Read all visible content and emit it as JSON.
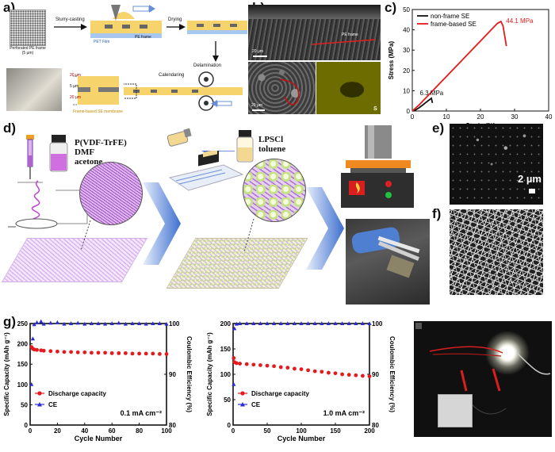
{
  "panel_labels": {
    "a": "a)",
    "b": "b)",
    "c": "c)",
    "d": "d)",
    "e": "e)",
    "f": "f)",
    "g": "g)"
  },
  "panel_a": {
    "frame_caption": "Perforated PE frame",
    "frame_size": "(5 µm)",
    "slurry": "Slurry-casting",
    "pe_frame": "PE frame",
    "pet_film": "PET Film",
    "drying": "Drying",
    "delamination": "Delamination",
    "calendaring": "Calendaring",
    "dim_top": "20 µm",
    "dim_mid": "5 µm",
    "dim_bot": "20 µm",
    "membrane_caption": "Frame-based SE membrane"
  },
  "panel_b": {
    "pe_frame_label": "PE frame",
    "scale_top": "20 µm",
    "scale_bottom": "20 µm",
    "eds_element": "S"
  },
  "panel_d": {
    "polymer_line1": "P(VDF-TrFE)",
    "polymer_line2": "DMF",
    "polymer_line3": "acetone",
    "salt_line1": "LPSCl",
    "salt_line2": "toluene"
  },
  "panel_e": {
    "scale": "2 µm"
  },
  "colors": {
    "red": "#e41a1c",
    "blue": "#2b2bd6",
    "black": "#111111",
    "frame_yellow": "#f6d36b",
    "arrow_blue": "#6a8fd8",
    "eds_yellow": "#d8d800"
  },
  "chart_data": [
    {
      "type": "line",
      "panel": "c",
      "xlabel": "Strain (%)",
      "ylabel": "Stress (MPa)",
      "xlim": [
        0,
        40
      ],
      "ylim": [
        0,
        50
      ],
      "xticks": [
        0,
        10,
        20,
        30,
        40
      ],
      "yticks": [
        0,
        10,
        20,
        30,
        40,
        50
      ],
      "legend_position": "top-left",
      "series": [
        {
          "name": "non-frame SE",
          "color": "#111111",
          "x": [
            0,
            1,
            2,
            3,
            4,
            5,
            5.6,
            5.9
          ],
          "y": [
            0,
            0.6,
            1.6,
            2.9,
            4.2,
            5.5,
            6.3,
            4.0
          ]
        },
        {
          "name": "frame-based SE",
          "color": "#e41a1c",
          "x": [
            0,
            2,
            4,
            6,
            8,
            10,
            12,
            14,
            16,
            18,
            20,
            22,
            24,
            25,
            26,
            26.6,
            27.2,
            27.6
          ],
          "y": [
            0,
            3.0,
            6.5,
            10.0,
            13.5,
            17.0,
            20.5,
            24.0,
            27.5,
            31.0,
            34.5,
            38.0,
            41.5,
            43.2,
            44.1,
            42.0,
            36.0,
            32.0
          ]
        }
      ],
      "annotations": [
        {
          "text": "44.1 MPa",
          "color": "#e41a1c"
        },
        {
          "text": "6.3 MPa",
          "color": "#111111"
        }
      ]
    },
    {
      "type": "scatter",
      "panel": "g-left",
      "xlabel": "Cycle Number",
      "ylabel": "Specific Capacity (mAh g⁻¹)",
      "y2label": "Coulombic Efficiency (%)",
      "xlim": [
        0,
        100
      ],
      "ylim": [
        0,
        250
      ],
      "y2lim": [
        80,
        100
      ],
      "xticks": [
        0,
        20,
        40,
        60,
        80,
        100
      ],
      "yticks": [
        0,
        50,
        100,
        150,
        200,
        250
      ],
      "y2ticks": [
        80,
        90,
        100
      ],
      "annotation": "0.1 mA cm⁻²",
      "series": [
        {
          "name": "Discharge capacity",
          "axis": "left",
          "color": "#e41a1c",
          "marker": "circle",
          "x": [
            1,
            2,
            3,
            5,
            8,
            10,
            15,
            20,
            25,
            30,
            35,
            40,
            45,
            50,
            55,
            60,
            65,
            70,
            75,
            80,
            85,
            90,
            95,
            100
          ],
          "y": [
            192,
            188,
            186,
            185,
            184,
            183,
            182,
            181,
            180,
            180,
            179,
            179,
            178,
            178,
            178,
            177,
            177,
            177,
            176,
            176,
            176,
            176,
            175,
            175
          ]
        },
        {
          "name": "CE",
          "axis": "right",
          "color": "#2b2bd6",
          "marker": "triangle",
          "x": [
            1,
            2,
            3,
            5,
            8,
            10,
            15,
            20,
            25,
            30,
            35,
            40,
            45,
            50,
            55,
            60,
            65,
            70,
            75,
            80,
            85,
            90,
            95,
            100
          ],
          "y": [
            88,
            97,
            99.8,
            100.2,
            100.4,
            99.9,
            100.1,
            100.2,
            99.9,
            100,
            100.1,
            99.9,
            100,
            100,
            99.9,
            100,
            100.1,
            99.9,
            100,
            100,
            99.9,
            100,
            100,
            99.9
          ]
        }
      ]
    },
    {
      "type": "scatter",
      "panel": "g-middle",
      "xlabel": "Cycle Number",
      "ylabel": "Specific Capacity (mAh g⁻¹)",
      "y2label": "Coulombic Efficiency (%)",
      "xlim": [
        0,
        200
      ],
      "ylim": [
        0,
        200
      ],
      "y2lim": [
        80,
        100
      ],
      "xticks": [
        0,
        50,
        100,
        150,
        200
      ],
      "yticks": [
        0,
        50,
        100,
        150,
        200
      ],
      "y2ticks": [
        80,
        90,
        100
      ],
      "annotation": "1.0 mA cm⁻²",
      "series": [
        {
          "name": "Discharge capacity",
          "axis": "left",
          "color": "#e41a1c",
          "marker": "circle",
          "x": [
            1,
            2,
            5,
            10,
            20,
            30,
            40,
            50,
            60,
            70,
            80,
            90,
            100,
            110,
            120,
            130,
            140,
            150,
            160,
            170,
            180,
            190,
            200
          ],
          "y": [
            132,
            124,
            122,
            121,
            120,
            119,
            118,
            117,
            116,
            114,
            113,
            111,
            110,
            108,
            106,
            105,
            103,
            102,
            100,
            99,
            98,
            97,
            96
          ]
        },
        {
          "name": "CE",
          "axis": "right",
          "color": "#2b2bd6",
          "marker": "triangle",
          "x": [
            1,
            2,
            5,
            10,
            20,
            30,
            40,
            50,
            60,
            70,
            80,
            90,
            100,
            110,
            120,
            130,
            140,
            150,
            160,
            170,
            180,
            190,
            200
          ],
          "y": [
            88,
            99,
            99.9,
            100,
            100,
            100,
            100,
            100,
            100,
            100,
            100,
            100,
            100,
            100,
            100,
            100,
            100,
            100,
            100,
            100,
            100,
            100,
            100
          ]
        }
      ]
    }
  ]
}
